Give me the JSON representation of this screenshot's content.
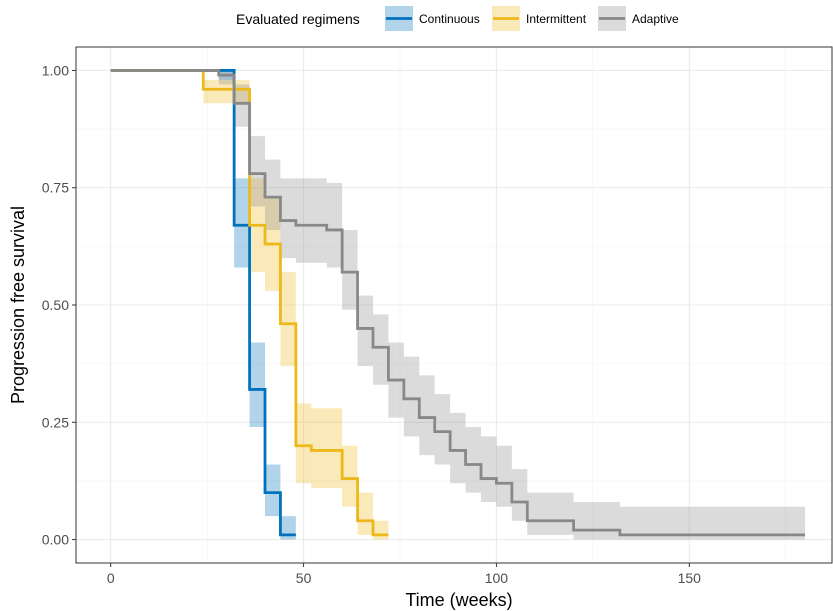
{
  "chart_data": {
    "type": "line",
    "step": true,
    "xlabel": "Time (weeks)",
    "ylabel": "Progression free survival",
    "xlim": [
      -9,
      187
    ],
    "ylim": [
      -0.05,
      1.05
    ],
    "xticks": [
      0,
      50,
      100,
      150
    ],
    "yticks": [
      0,
      0.25,
      0.5,
      0.75,
      1
    ],
    "ytick_labels": [
      "0.00",
      "0.25",
      "0.50",
      "0.75",
      "1.00"
    ],
    "grid": true,
    "legend": {
      "title": "Evaluated regimens",
      "position": "top"
    },
    "series": [
      {
        "name": "Continuous",
        "color": "#0072BD",
        "x": [
          0,
          28,
          32,
          36,
          40,
          44,
          48
        ],
        "y": [
          1.0,
          1.0,
          0.67,
          0.32,
          0.1,
          0.01,
          0.01
        ],
        "lower": [
          1.0,
          0.98,
          0.58,
          0.24,
          0.05,
          0.0,
          0.0
        ],
        "upper": [
          1.0,
          1.0,
          0.77,
          0.42,
          0.16,
          0.05,
          0.05
        ]
      },
      {
        "name": "Intermittent",
        "color": "#EDB91A",
        "x": [
          0,
          24,
          28,
          36,
          40,
          44,
          48,
          52,
          56,
          60,
          64,
          68,
          72
        ],
        "y": [
          1.0,
          0.96,
          0.96,
          0.67,
          0.63,
          0.46,
          0.2,
          0.19,
          0.19,
          0.13,
          0.04,
          0.01,
          0.01
        ],
        "lower": [
          1.0,
          0.93,
          0.93,
          0.57,
          0.53,
          0.37,
          0.12,
          0.11,
          0.11,
          0.07,
          0.01,
          0.0,
          0.0
        ],
        "upper": [
          1.0,
          0.98,
          0.98,
          0.77,
          0.73,
          0.57,
          0.29,
          0.28,
          0.28,
          0.2,
          0.1,
          0.04,
          0.04
        ]
      },
      {
        "name": "Adaptive",
        "color": "#888888",
        "x": [
          0,
          28,
          32,
          36,
          40,
          44,
          48,
          56,
          60,
          64,
          68,
          72,
          76,
          80,
          84,
          88,
          92,
          96,
          100,
          104,
          108,
          120,
          132,
          180
        ],
        "y": [
          1.0,
          0.99,
          0.93,
          0.78,
          0.73,
          0.68,
          0.67,
          0.66,
          0.57,
          0.45,
          0.41,
          0.34,
          0.3,
          0.26,
          0.23,
          0.19,
          0.16,
          0.13,
          0.12,
          0.08,
          0.04,
          0.02,
          0.01,
          0.01
        ],
        "lower": [
          1.0,
          0.97,
          0.88,
          0.71,
          0.66,
          0.6,
          0.59,
          0.58,
          0.49,
          0.37,
          0.33,
          0.26,
          0.22,
          0.18,
          0.16,
          0.12,
          0.1,
          0.08,
          0.07,
          0.04,
          0.01,
          0.0,
          0.0,
          0.0
        ],
        "upper": [
          1.0,
          1.0,
          0.97,
          0.86,
          0.81,
          0.77,
          0.77,
          0.76,
          0.66,
          0.52,
          0.48,
          0.42,
          0.39,
          0.35,
          0.31,
          0.27,
          0.24,
          0.22,
          0.2,
          0.15,
          0.1,
          0.08,
          0.07,
          0.07
        ]
      }
    ]
  }
}
